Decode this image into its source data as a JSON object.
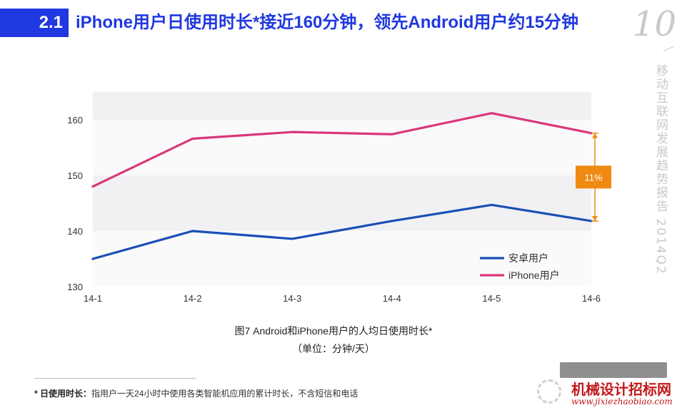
{
  "header": {
    "section_number": "2.1",
    "title": "iPhone用户日使用时长*接近160分钟，领先Android用户约15分钟"
  },
  "side_decoration": {
    "page_number": "10",
    "vertical_text": "移动互联网发展趋势报告 2014Q2"
  },
  "chart_data": {
    "type": "line",
    "x": [
      "14-1",
      "14-2",
      "14-3",
      "14-4",
      "14-5",
      "14-6"
    ],
    "ylim": [
      130,
      165
    ],
    "yticks": [
      130,
      140,
      150,
      160
    ],
    "series": [
      {
        "name": "安卓用户",
        "color": "#1a4fb5",
        "values": [
          135.0,
          140.0,
          138.6,
          141.8,
          144.7,
          141.8
        ]
      },
      {
        "name": "iPhone用户",
        "color": "#d9387a",
        "values": [
          148.0,
          156.6,
          157.8,
          157.4,
          161.2,
          157.6
        ]
      }
    ],
    "annotation": {
      "text": "11%",
      "color": "#f08a12"
    },
    "legend_position": "bottom-right",
    "background_bands": true
  },
  "caption": {
    "title": "图7 Android和iPhone用户的人均日使用时长*",
    "unit": "（单位：分钟/天）"
  },
  "footnote": {
    "label": "* 日使用时长：",
    "text": "指用户一天24小时中使用各类智能机应用的累计时长，不含短信和电话"
  },
  "watermark": {
    "name": "机械设计招标网",
    "url": "www.jixiezhaobiao.com"
  }
}
